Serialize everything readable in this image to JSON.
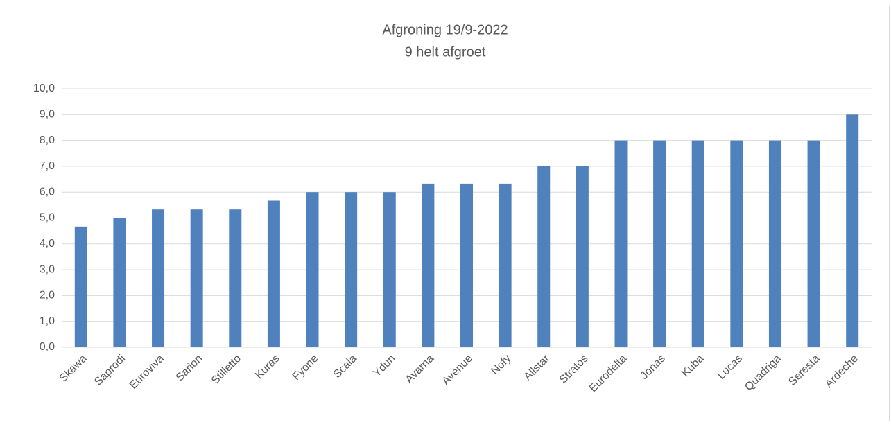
{
  "chart_data": {
    "type": "bar",
    "title": "Afgroning 19/9-2022",
    "subtitle": "9 helt afgroet",
    "categories": [
      "Skawa",
      "Saprodi",
      "Euroviva",
      "Sarion",
      "Stilletto",
      "Kuras",
      "Fyone",
      "Scala",
      "Ydun",
      "Avarna",
      "Avenue",
      "Nofy",
      "Allstar",
      "Stratos",
      "Eurodelta",
      "Jonas",
      "Kuba",
      "Lucas",
      "Quadriga",
      "Seresta",
      "Ardeche"
    ],
    "values": [
      4.67,
      5.0,
      5.33,
      5.33,
      5.33,
      5.67,
      6.0,
      6.0,
      6.0,
      6.33,
      6.33,
      6.33,
      7.0,
      7.0,
      8.0,
      8.0,
      8.0,
      8.0,
      8.0,
      8.0,
      9.0
    ],
    "color": "#4f81bd",
    "ylim": [
      0,
      10
    ],
    "yticks": [
      {
        "value": 0,
        "label": "0,0"
      },
      {
        "value": 1,
        "label": "1,0"
      },
      {
        "value": 2,
        "label": "2,0"
      },
      {
        "value": 3,
        "label": "3,0"
      },
      {
        "value": 4,
        "label": "4,0"
      },
      {
        "value": 5,
        "label": "5,0"
      },
      {
        "value": 6,
        "label": "6,0"
      },
      {
        "value": 7,
        "label": "7,0"
      },
      {
        "value": 8,
        "label": "8,0"
      },
      {
        "value": 9,
        "label": "9,0"
      },
      {
        "value": 10,
        "label": "10,0"
      }
    ],
    "grid": true
  }
}
